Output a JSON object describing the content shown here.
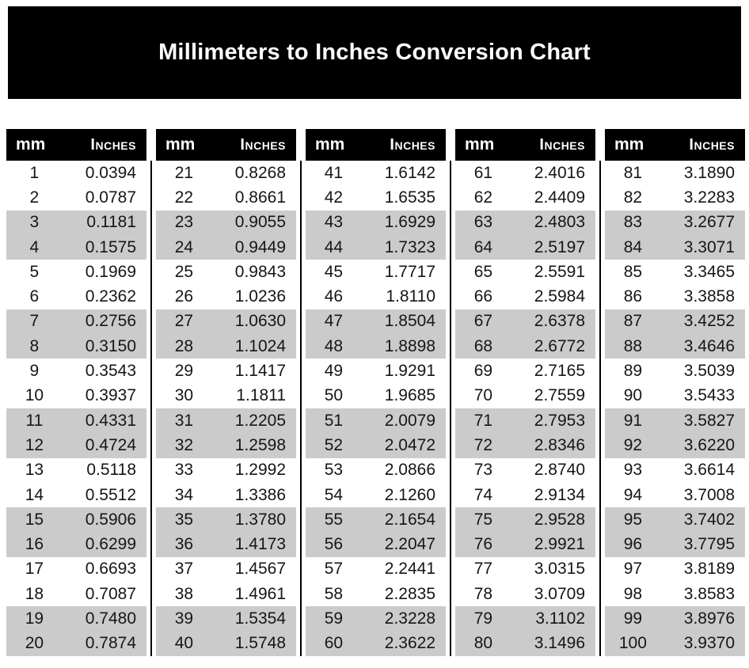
{
  "title": "Millimeters to Inches Conversion Chart",
  "header": {
    "mm_label": "mm",
    "inches_label": "Inches"
  },
  "layout": {
    "groups": 5,
    "rows_per_group": 20,
    "stripe_pattern": "alternating pairs: 2 white rows, 2 gray rows"
  },
  "colors": {
    "banner_bg": "#000000",
    "banner_text": "#ffffff",
    "header_bg": "#000000",
    "header_text": "#ffffff",
    "stripe": "#cbcbcb",
    "text": "#161616",
    "divider": "#000000",
    "page_bg": "#ffffff"
  },
  "chart_data": {
    "type": "table",
    "title": "Millimeters to Inches Conversion Chart",
    "column_headers": [
      "mm",
      "Inches"
    ],
    "pairs": [
      [
        1,
        "0.0394"
      ],
      [
        2,
        "0.0787"
      ],
      [
        3,
        "0.1181"
      ],
      [
        4,
        "0.1575"
      ],
      [
        5,
        "0.1969"
      ],
      [
        6,
        "0.2362"
      ],
      [
        7,
        "0.2756"
      ],
      [
        8,
        "0.3150"
      ],
      [
        9,
        "0.3543"
      ],
      [
        10,
        "0.3937"
      ],
      [
        11,
        "0.4331"
      ],
      [
        12,
        "0.4724"
      ],
      [
        13,
        "0.5118"
      ],
      [
        14,
        "0.5512"
      ],
      [
        15,
        "0.5906"
      ],
      [
        16,
        "0.6299"
      ],
      [
        17,
        "0.6693"
      ],
      [
        18,
        "0.7087"
      ],
      [
        19,
        "0.7480"
      ],
      [
        20,
        "0.7874"
      ],
      [
        21,
        "0.8268"
      ],
      [
        22,
        "0.8661"
      ],
      [
        23,
        "0.9055"
      ],
      [
        24,
        "0.9449"
      ],
      [
        25,
        "0.9843"
      ],
      [
        26,
        "1.0236"
      ],
      [
        27,
        "1.0630"
      ],
      [
        28,
        "1.1024"
      ],
      [
        29,
        "1.1417"
      ],
      [
        30,
        "1.1811"
      ],
      [
        31,
        "1.2205"
      ],
      [
        32,
        "1.2598"
      ],
      [
        33,
        "1.2992"
      ],
      [
        34,
        "1.3386"
      ],
      [
        35,
        "1.3780"
      ],
      [
        36,
        "1.4173"
      ],
      [
        37,
        "1.4567"
      ],
      [
        38,
        "1.4961"
      ],
      [
        39,
        "1.5354"
      ],
      [
        40,
        "1.5748"
      ],
      [
        41,
        "1.6142"
      ],
      [
        42,
        "1.6535"
      ],
      [
        43,
        "1.6929"
      ],
      [
        44,
        "1.7323"
      ],
      [
        45,
        "1.7717"
      ],
      [
        46,
        "1.8110"
      ],
      [
        47,
        "1.8504"
      ],
      [
        48,
        "1.8898"
      ],
      [
        49,
        "1.9291"
      ],
      [
        50,
        "1.9685"
      ],
      [
        51,
        "2.0079"
      ],
      [
        52,
        "2.0472"
      ],
      [
        53,
        "2.0866"
      ],
      [
        54,
        "2.1260"
      ],
      [
        55,
        "2.1654"
      ],
      [
        56,
        "2.2047"
      ],
      [
        57,
        "2.2441"
      ],
      [
        58,
        "2.2835"
      ],
      [
        59,
        "2.3228"
      ],
      [
        60,
        "2.3622"
      ],
      [
        61,
        "2.4016"
      ],
      [
        62,
        "2.4409"
      ],
      [
        63,
        "2.4803"
      ],
      [
        64,
        "2.5197"
      ],
      [
        65,
        "2.5591"
      ],
      [
        66,
        "2.5984"
      ],
      [
        67,
        "2.6378"
      ],
      [
        68,
        "2.6772"
      ],
      [
        69,
        "2.7165"
      ],
      [
        70,
        "2.7559"
      ],
      [
        71,
        "2.7953"
      ],
      [
        72,
        "2.8346"
      ],
      [
        73,
        "2.8740"
      ],
      [
        74,
        "2.9134"
      ],
      [
        75,
        "2.9528"
      ],
      [
        76,
        "2.9921"
      ],
      [
        77,
        "3.0315"
      ],
      [
        78,
        "3.0709"
      ],
      [
        79,
        "3.1102"
      ],
      [
        80,
        "3.1496"
      ],
      [
        81,
        "3.1890"
      ],
      [
        82,
        "3.2283"
      ],
      [
        83,
        "3.2677"
      ],
      [
        84,
        "3.3071"
      ],
      [
        85,
        "3.3465"
      ],
      [
        86,
        "3.3858"
      ],
      [
        87,
        "3.4252"
      ],
      [
        88,
        "3.4646"
      ],
      [
        89,
        "3.5039"
      ],
      [
        90,
        "3.5433"
      ],
      [
        91,
        "3.5827"
      ],
      [
        92,
        "3.6220"
      ],
      [
        93,
        "3.6614"
      ],
      [
        94,
        "3.7008"
      ],
      [
        95,
        "3.7402"
      ],
      [
        96,
        "3.7795"
      ],
      [
        97,
        "3.8189"
      ],
      [
        98,
        "3.8583"
      ],
      [
        99,
        "3.8976"
      ],
      [
        100,
        "3.9370"
      ]
    ]
  }
}
